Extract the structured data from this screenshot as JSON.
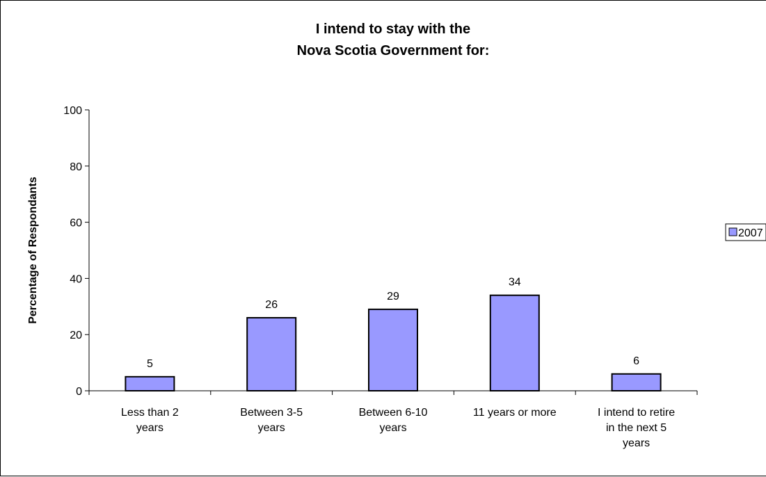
{
  "chart_data": {
    "type": "bar",
    "title_lines": [
      "I intend to stay with the",
      "Nova Scotia Government for:"
    ],
    "ylabel": "Percentage of Respondants",
    "xlabel": "",
    "ylim": [
      0,
      100
    ],
    "yticks": [
      0,
      20,
      40,
      60,
      80,
      100
    ],
    "categories": [
      [
        "Less than 2",
        "years"
      ],
      [
        "Between 3-5",
        "years"
      ],
      [
        "Between 6-10",
        "years"
      ],
      [
        "11 years or more"
      ],
      [
        "I intend to retire",
        "in the next 5",
        "years"
      ]
    ],
    "series": [
      {
        "name": "2007",
        "values": [
          5,
          26,
          29,
          34,
          6
        ],
        "data_labels": [
          "5",
          "26",
          "29",
          "34",
          "6"
        ],
        "color": "#9999ff",
        "stroke": "#000000"
      }
    ],
    "grid": false,
    "legend_position": "right"
  }
}
